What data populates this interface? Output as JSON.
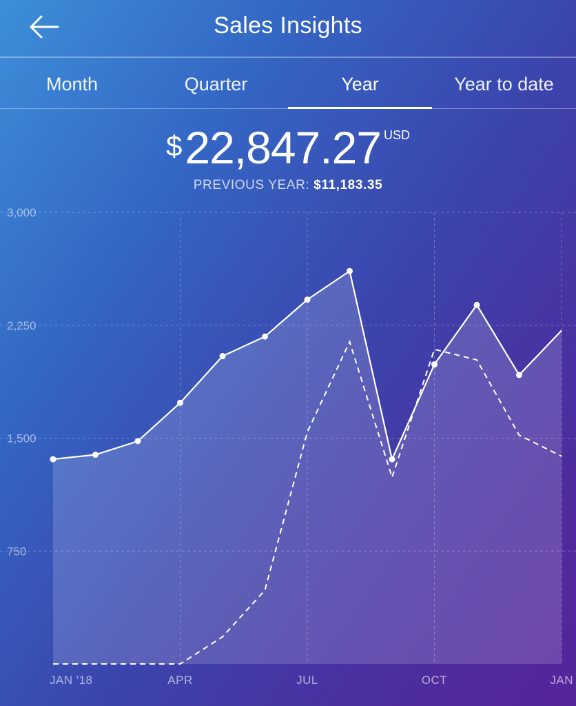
{
  "header": {
    "title": "Sales Insights",
    "back_icon": "arrow-left-icon"
  },
  "tabs": [
    {
      "label": "Month",
      "active": false
    },
    {
      "label": "Quarter",
      "active": false
    },
    {
      "label": "Year",
      "active": true
    },
    {
      "label": "Year to date",
      "active": false
    }
  ],
  "summary": {
    "currency_symbol": "$",
    "amount": "22,847.27",
    "currency": "USD",
    "previous_label": "PREVIOUS YEAR:",
    "previous_value": "$11,183.35"
  },
  "chart_data": {
    "type": "area",
    "title": "",
    "xlabel": "",
    "ylabel": "",
    "ylim": [
      0,
      3000
    ],
    "yticks": [
      "3,000",
      "2,250",
      "1,500",
      "750"
    ],
    "ytick_values": [
      3000,
      2250,
      1500,
      750
    ],
    "xtick_labels": [
      "JAN '18",
      "APR",
      "JUL",
      "OCT",
      "JAN"
    ],
    "xtick_index": [
      0,
      3,
      6,
      9,
      12
    ],
    "grid": true,
    "series": [
      {
        "style": "solid-area",
        "values": [
          1360,
          1390,
          1480,
          1735,
          2045,
          2175,
          2420,
          2610,
          1360,
          1990,
          2385,
          1920,
          2215
        ]
      },
      {
        "style": "dashed",
        "values": [
          0,
          0,
          0,
          0,
          180,
          490,
          1540,
          2140,
          1240,
          2090,
          2020,
          1520,
          1380
        ]
      }
    ]
  }
}
